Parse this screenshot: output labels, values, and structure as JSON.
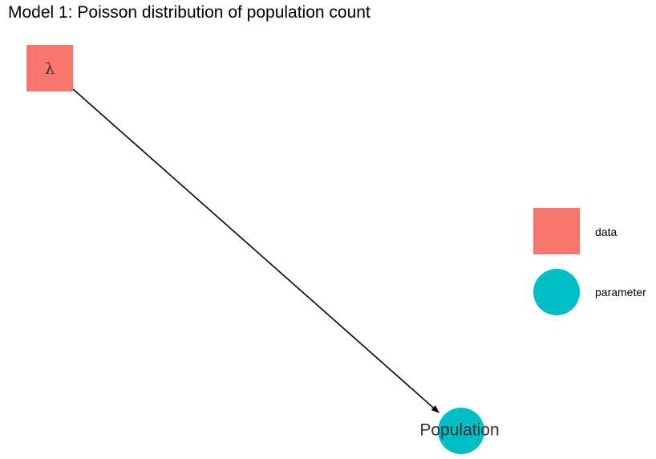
{
  "title": "Model 1: Poisson distribution of population count",
  "nodes": [
    {
      "id": "lambda",
      "label": "λ",
      "type": "data"
    },
    {
      "id": "population",
      "label": "Population",
      "type": "parameter"
    }
  ],
  "edges": [
    {
      "from": "lambda",
      "to": "population"
    }
  ],
  "legend": [
    {
      "label": "data",
      "shape": "square",
      "color": "#F8766D"
    },
    {
      "label": "parameter",
      "shape": "circle",
      "color": "#00BFC4"
    }
  ],
  "colors": {
    "data": "#F8766D",
    "parameter": "#00BFC4"
  }
}
